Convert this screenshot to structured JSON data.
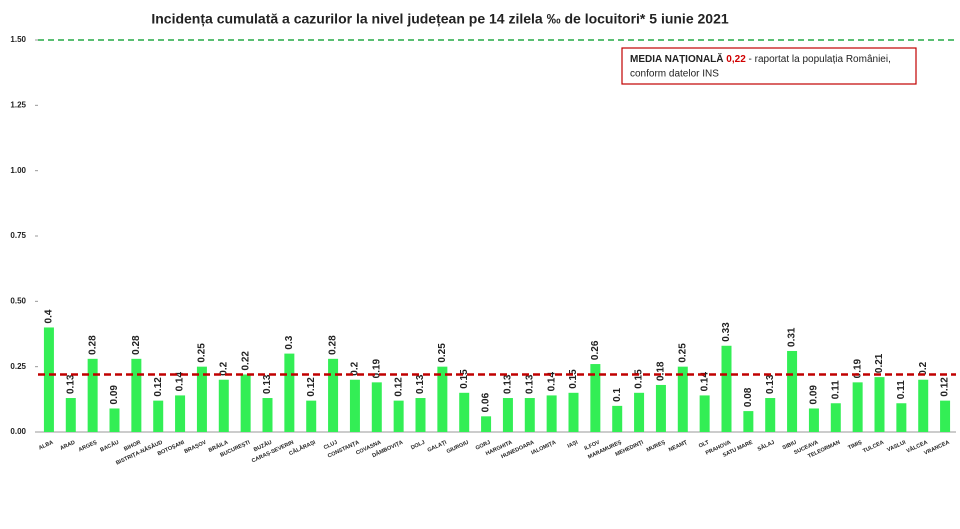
{
  "chart_data": {
    "type": "bar",
    "title": "Incidența cumulată a cazurilor la nivel județean pe 14 zilela ‰ de locuitori*  5 iunie 2021",
    "categories": [
      "ALBA",
      "ARAD",
      "ARGEȘ",
      "BACĂU",
      "BIHOR",
      "BISTRIȚA-NĂSĂUD",
      "BOTOȘANI",
      "BRAȘOV",
      "BRĂILA",
      "BUCUREȘTI",
      "BUZĂU",
      "CARAȘ-SEVERIN",
      "CĂLĂRAȘI",
      "CLUJ",
      "CONSTANȚA",
      "COVASNA",
      "DÂMBOVIȚA",
      "DOLJ",
      "GALAȚI",
      "GIURGIU",
      "GORJ",
      "HARGHITA",
      "HUNEDOARA",
      "IALOMIȚA",
      "IAȘI",
      "ILFOV",
      "MARAMUREȘ",
      "MEHEDINȚI",
      "MUREȘ",
      "NEAMȚ",
      "OLT",
      "PRAHOVA",
      "SATU MARE",
      "SĂLAJ",
      "SIBIU",
      "SUCEAVA",
      "TELEORMAN",
      "TIMIȘ",
      "TULCEA",
      "VASLUI",
      "VÂLCEA",
      "VRANCEA"
    ],
    "values": [
      0.4,
      0.13,
      0.28,
      0.09,
      0.28,
      0.12,
      0.14,
      0.25,
      0.2,
      0.22,
      0.13,
      0.3,
      0.12,
      0.28,
      0.2,
      0.19,
      0.12,
      0.13,
      0.25,
      0.15,
      0.06,
      0.13,
      0.13,
      0.14,
      0.15,
      0.26,
      0.1,
      0.15,
      0.18,
      0.25,
      0.14,
      0.33,
      0.08,
      0.13,
      0.31,
      0.09,
      0.11,
      0.19,
      0.21,
      0.11,
      0.2,
      0.12
    ],
    "color": "#33ee55",
    "ylim": [
      0,
      1.5
    ],
    "yticks": [
      {
        "value": 0,
        "label": "0.00"
      },
      {
        "value": 0.25,
        "label": "0.25"
      },
      {
        "value": 0.5,
        "label": "0.50"
      },
      {
        "value": 0.75,
        "label": "0.75"
      },
      {
        "value": 1,
        "label": "1.00"
      },
      {
        "value": 1.25,
        "label": "1.25"
      },
      {
        "value": 1.5,
        "label": "1.50"
      }
    ],
    "reference_lines": [
      {
        "value": 0.22,
        "color": "#c00000",
        "label": "0,22"
      },
      {
        "value": 1.5,
        "color": "#22aa44"
      }
    ],
    "annotation": {
      "bold": "MEDIA NAȚIONALĂ",
      "text_1": "- raportat la populația României,",
      "text_2": "conform datelor INS"
    }
  }
}
